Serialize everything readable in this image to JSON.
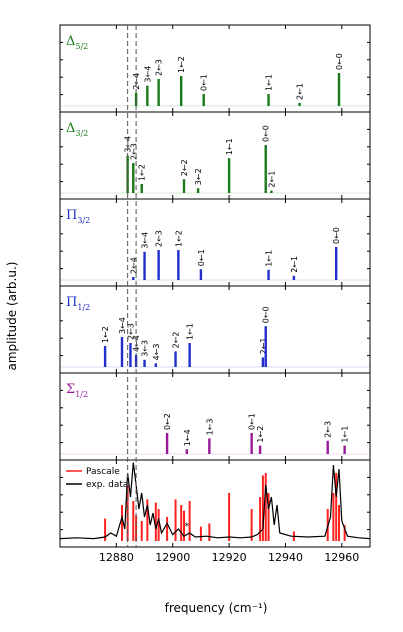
{
  "chart_data": {
    "type": "bar",
    "xlabel": "frequency (cm⁻¹)",
    "ylabel": "amplitude (arb.u.)",
    "xlim": [
      12860,
      12970
    ],
    "xticks": [
      12880,
      12900,
      12920,
      12940,
      12960
    ],
    "dashed_lines": [
      12884,
      12887
    ],
    "panels": [
      {
        "label_main": "Δ",
        "label_sub": "5/2",
        "color": "#1a7a1a",
        "bars": [
          {
            "x": 12887,
            "h": 0.22,
            "label": "2←4"
          },
          {
            "x": 12891,
            "h": 0.34,
            "label": "3←4"
          },
          {
            "x": 12895,
            "h": 0.45,
            "label": "2←3"
          },
          {
            "x": 12903,
            "h": 0.5,
            "label": "1←2"
          },
          {
            "x": 12911,
            "h": 0.2,
            "label": "0←1"
          },
          {
            "x": 12934,
            "h": 0.2,
            "label": "1←1"
          },
          {
            "x": 12945,
            "h": 0.05,
            "label": "2←1"
          },
          {
            "x": 12959,
            "h": 0.55,
            "label": "0←0"
          }
        ]
      },
      {
        "label_main": "Δ",
        "label_sub": "3/2",
        "color": "#1a7a1a",
        "bars": [
          {
            "x": 12884,
            "h": 0.62,
            "label": "3←4"
          },
          {
            "x": 12886,
            "h": 0.5,
            "label": "2←3"
          },
          {
            "x": 12889,
            "h": 0.15,
            "label": "1←2"
          },
          {
            "x": 12904,
            "h": 0.23,
            "label": "2←2"
          },
          {
            "x": 12909,
            "h": 0.08,
            "label": "3←2"
          },
          {
            "x": 12920,
            "h": 0.58,
            "label": "1←1"
          },
          {
            "x": 12933,
            "h": 0.8,
            "label": "0←0"
          },
          {
            "x": 12935,
            "h": 0.04,
            "label": "2←1"
          }
        ]
      },
      {
        "label_main": "Π",
        "label_sub": "3/2",
        "color": "#1f2ecc",
        "bars": [
          {
            "x": 12886,
            "h": 0.05,
            "label": "2←4"
          },
          {
            "x": 12890,
            "h": 0.47,
            "label": "3←4"
          },
          {
            "x": 12895,
            "h": 0.5,
            "label": "2←3"
          },
          {
            "x": 12902,
            "h": 0.5,
            "label": "1←2"
          },
          {
            "x": 12910,
            "h": 0.18,
            "label": "0←1"
          },
          {
            "x": 12934,
            "h": 0.17,
            "label": "1←1"
          },
          {
            "x": 12943,
            "h": 0.07,
            "label": "2←1"
          },
          {
            "x": 12958,
            "h": 0.55,
            "label": "0←0"
          }
        ]
      },
      {
        "label_main": "Π",
        "label_sub": "1/2",
        "color": "#1f2ecc",
        "bars": [
          {
            "x": 12876,
            "h": 0.35,
            "label": "1←2"
          },
          {
            "x": 12882,
            "h": 0.5,
            "label": "3←4"
          },
          {
            "x": 12885,
            "h": 0.4,
            "label": "2←3"
          },
          {
            "x": 12887,
            "h": 0.2,
            "label": "4←4"
          },
          {
            "x": 12890,
            "h": 0.12,
            "label": "3←3"
          },
          {
            "x": 12894,
            "h": 0.06,
            "label": "4←3"
          },
          {
            "x": 12901,
            "h": 0.26,
            "label": "2←2"
          },
          {
            "x": 12906,
            "h": 0.4,
            "label": "1←1"
          },
          {
            "x": 12932,
            "h": 0.16,
            "label": "2←1"
          },
          {
            "x": 12933,
            "h": 0.68,
            "label": "0←0"
          }
        ]
      },
      {
        "label_main": "Σ",
        "label_sub": "1/2",
        "color": "#991a99",
        "bars": [
          {
            "x": 12898,
            "h": 0.35,
            "label": "0←2"
          },
          {
            "x": 12905,
            "h": 0.08,
            "label": "1←4"
          },
          {
            "x": 12913,
            "h": 0.26,
            "label": "1←3"
          },
          {
            "x": 12928,
            "h": 0.35,
            "label": "0←1"
          },
          {
            "x": 12931,
            "h": 0.14,
            "label": "1←2"
          },
          {
            "x": 12955,
            "h": 0.22,
            "label": "2←3"
          },
          {
            "x": 12961,
            "h": 0.14,
            "label": "1←1"
          }
        ]
      }
    ],
    "bottom_panel": {
      "legend": [
        {
          "name": "Pascale",
          "color": "#ff2020"
        },
        {
          "name": "exp. data",
          "color": "#000000"
        }
      ],
      "pascale_sticks": [
        {
          "x": 12876,
          "h": 0.28
        },
        {
          "x": 12882,
          "h": 0.45
        },
        {
          "x": 12884,
          "h": 0.7
        },
        {
          "x": 12886,
          "h": 0.5
        },
        {
          "x": 12887,
          "h": 0.32
        },
        {
          "x": 12889,
          "h": 0.25
        },
        {
          "x": 12891,
          "h": 0.52
        },
        {
          "x": 12894,
          "h": 0.48
        },
        {
          "x": 12895,
          "h": 0.4
        },
        {
          "x": 12898,
          "h": 0.3
        },
        {
          "x": 12901,
          "h": 0.52
        },
        {
          "x": 12903,
          "h": 0.45
        },
        {
          "x": 12904,
          "h": 0.38
        },
        {
          "x": 12906,
          "h": 0.5
        },
        {
          "x": 12910,
          "h": 0.18
        },
        {
          "x": 12913,
          "h": 0.22
        },
        {
          "x": 12920,
          "h": 0.6
        },
        {
          "x": 12928,
          "h": 0.4
        },
        {
          "x": 12931,
          "h": 0.55
        },
        {
          "x": 12932,
          "h": 0.82
        },
        {
          "x": 12933,
          "h": 0.85
        },
        {
          "x": 12934,
          "h": 0.6
        },
        {
          "x": 12943,
          "h": 0.12
        },
        {
          "x": 12955,
          "h": 0.4
        },
        {
          "x": 12957,
          "h": 0.6
        },
        {
          "x": 12958,
          "h": 0.85
        },
        {
          "x": 12959,
          "h": 0.45
        },
        {
          "x": 12961,
          "h": 0.2
        }
      ],
      "exp_data": [
        [
          12860,
          0.03
        ],
        [
          12866,
          0.04
        ],
        [
          12872,
          0.03
        ],
        [
          12876,
          0.05
        ],
        [
          12878,
          0.1
        ],
        [
          12880,
          0.06
        ],
        [
          12882,
          0.3
        ],
        [
          12883,
          0.15
        ],
        [
          12884,
          0.85
        ],
        [
          12885,
          0.55
        ],
        [
          12886,
          0.98
        ],
        [
          12887,
          0.7
        ],
        [
          12888,
          0.4
        ],
        [
          12889,
          0.6
        ],
        [
          12890,
          0.3
        ],
        [
          12891,
          0.45
        ],
        [
          12892,
          0.2
        ],
        [
          12893,
          0.35
        ],
        [
          12894,
          0.15
        ],
        [
          12895,
          0.28
        ],
        [
          12896,
          0.1
        ],
        [
          12898,
          0.22
        ],
        [
          12900,
          0.08
        ],
        [
          12902,
          0.15
        ],
        [
          12904,
          0.06
        ],
        [
          12906,
          0.1
        ],
        [
          12908,
          0.05
        ],
        [
          12912,
          0.06
        ],
        [
          12916,
          0.04
        ],
        [
          12920,
          0.05
        ],
        [
          12924,
          0.04
        ],
        [
          12928,
          0.05
        ],
        [
          12930,
          0.08
        ],
        [
          12932,
          0.15
        ],
        [
          12933,
          0.7
        ],
        [
          12934,
          0.4
        ],
        [
          12935,
          0.55
        ],
        [
          12936,
          0.2
        ],
        [
          12937,
          0.45
        ],
        [
          12938,
          0.1
        ],
        [
          12942,
          0.06
        ],
        [
          12948,
          0.05
        ],
        [
          12954,
          0.06
        ],
        [
          12956,
          0.3
        ],
        [
          12957,
          0.95
        ],
        [
          12958,
          0.55
        ],
        [
          12959,
          0.9
        ],
        [
          12960,
          0.25
        ],
        [
          12962,
          0.06
        ],
        [
          12966,
          0.04
        ],
        [
          12970,
          0.03
        ]
      ],
      "marker_label": "*"
    }
  }
}
